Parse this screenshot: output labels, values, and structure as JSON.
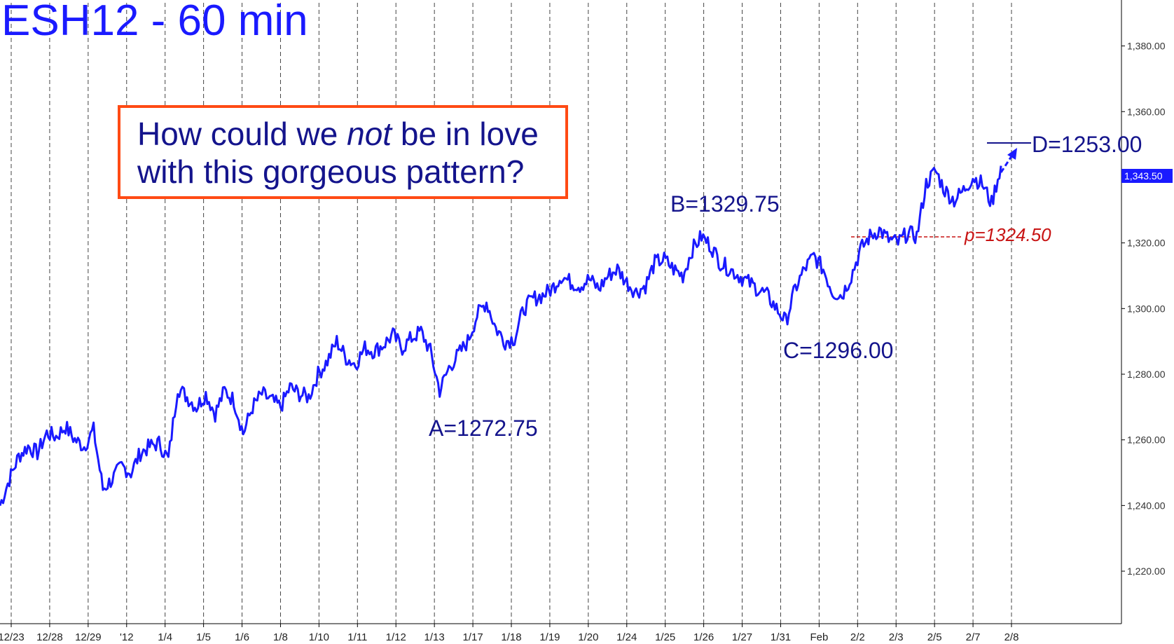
{
  "title": "ESH12 - 60 min",
  "callout": {
    "line1_pre": "How could we ",
    "line1_em": "not",
    "line1_post": " be in love",
    "line2": "with this gorgeous pattern?"
  },
  "annotations": {
    "A": "A=1272.75",
    "B": "B=1329.75",
    "C": "C=1296.00",
    "D": "D=1253.00",
    "pivot": "p=1324.50"
  },
  "last_price_label": "1,343.50",
  "colors": {
    "price_line": "#1a1aff",
    "callout_border": "#ff4a14",
    "pivot": "#c81414",
    "annotation_text": "#14148c"
  },
  "chart_data": {
    "type": "line",
    "title": "ESH12 - 60 min",
    "ylim": [
      1204,
      1394
    ],
    "y_ticks": [
      1220,
      1240,
      1260,
      1280,
      1300,
      1320,
      1340,
      1360,
      1380
    ],
    "y_tick_labels": [
      "1,220.00",
      "1,240.00",
      "1,260.00",
      "1,280.00",
      "1,300.00",
      "1,320.00",
      "1,340.00",
      "1,360.00",
      "1,380.00"
    ],
    "x_ticks": [
      "12/23",
      "12/28",
      "12/29",
      "'12",
      "1/4",
      "1/5",
      "1/6",
      "1/8",
      "1/10",
      "1/11",
      "1/12",
      "1/13",
      "1/17",
      "1/18",
      "1/19",
      "1/20",
      "1/24",
      "1/25",
      "1/26",
      "1/27",
      "1/31",
      "Feb",
      "2/2",
      "2/3",
      "2/5",
      "2/7",
      "2/8"
    ],
    "grid": "vertical dashed at each session",
    "series": [
      {
        "values": [
          1240,
          1248,
          1255,
          1258,
          1256,
          1262,
          1261,
          1264,
          1260,
          1258,
          1263,
          1245,
          1248,
          1252,
          1250,
          1256,
          1258,
          1259,
          1254,
          1276,
          1273,
          1270,
          1274,
          1268,
          1275,
          1272,
          1262,
          1270,
          1274,
          1272,
          1270,
          1276,
          1274,
          1273,
          1280,
          1284,
          1290,
          1285,
          1283,
          1288,
          1287,
          1289,
          1292,
          1288,
          1291,
          1293,
          1287,
          1275,
          1282,
          1286,
          1290,
          1298,
          1302,
          1294,
          1290,
          1291,
          1300,
          1303,
          1304,
          1306,
          1310,
          1308,
          1307,
          1309,
          1306,
          1310,
          1312,
          1308,
          1305,
          1307,
          1314,
          1315,
          1312,
          1310,
          1318,
          1322,
          1319,
          1314,
          1312,
          1310,
          1308,
          1306,
          1304,
          1300,
          1296,
          1306,
          1312,
          1316,
          1312,
          1305,
          1304,
          1310,
          1318,
          1322,
          1324,
          1321,
          1320,
          1323,
          1322,
          1338,
          1342,
          1336,
          1333,
          1336,
          1340,
          1338,
          1332,
          1343.5
        ],
        "y_range": [
          1240,
          1343.5
        ]
      }
    ],
    "key_points": {
      "A": 1272.75,
      "B": 1329.75,
      "C": 1296.0,
      "D_target": 1253.0,
      "pivot": 1324.5,
      "last": 1343.5
    }
  }
}
